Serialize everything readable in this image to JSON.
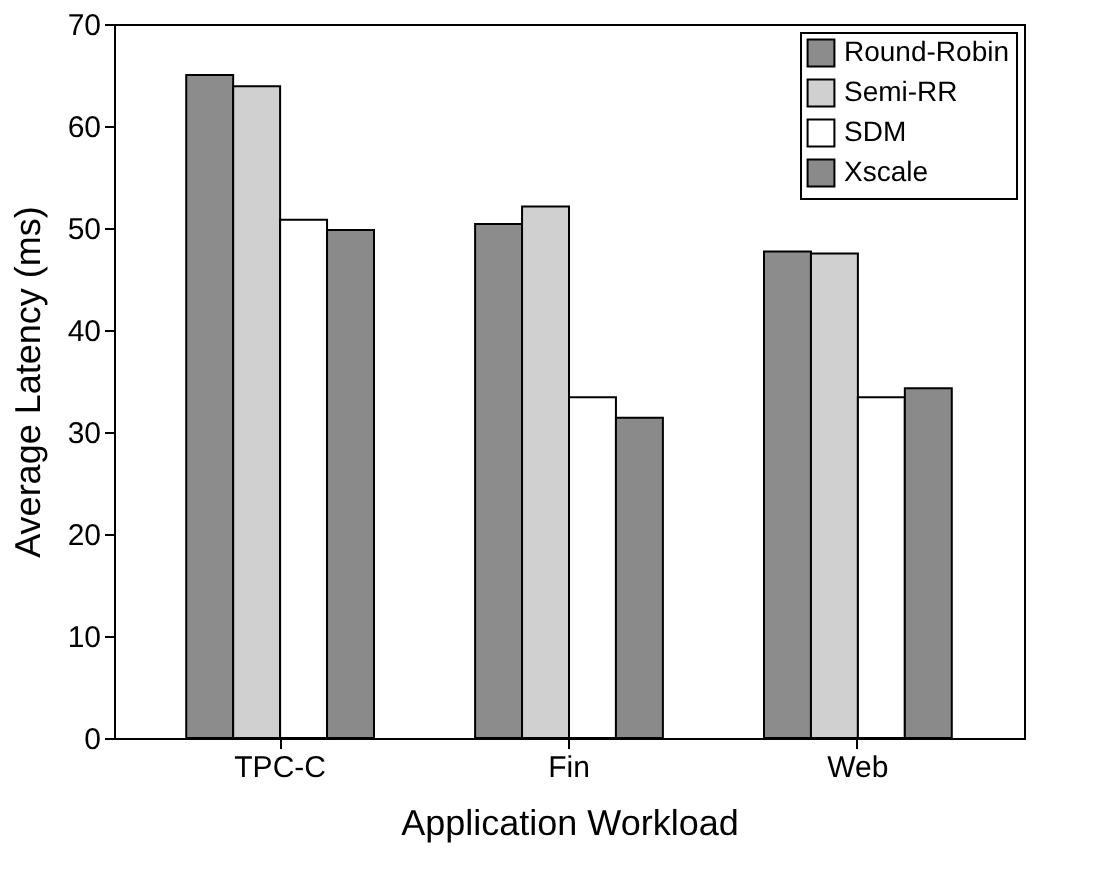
{
  "chart_data": {
    "type": "bar",
    "xlabel": "Application Workload",
    "ylabel": "Average Latency (ms)",
    "categories": [
      "TPC-C",
      "Fin",
      "Web"
    ],
    "series": [
      {
        "name": "Round-Robin",
        "color": "#8c8c8c",
        "values": [
          65.0,
          50.4,
          47.7
        ]
      },
      {
        "name": "Semi-RR",
        "color": "#d0d0d0",
        "values": [
          63.9,
          52.1,
          47.5
        ]
      },
      {
        "name": "SDM",
        "color": "#ffffff",
        "values": [
          50.8,
          33.4,
          33.4
        ]
      },
      {
        "name": "Xscale",
        "color": "#8a8a8a",
        "values": [
          49.8,
          31.4,
          34.3
        ]
      }
    ],
    "ylim": [
      0,
      70
    ],
    "yticks": [
      0,
      10,
      20,
      30,
      40,
      50,
      60,
      70
    ],
    "grid": false,
    "legend": "top right"
  }
}
